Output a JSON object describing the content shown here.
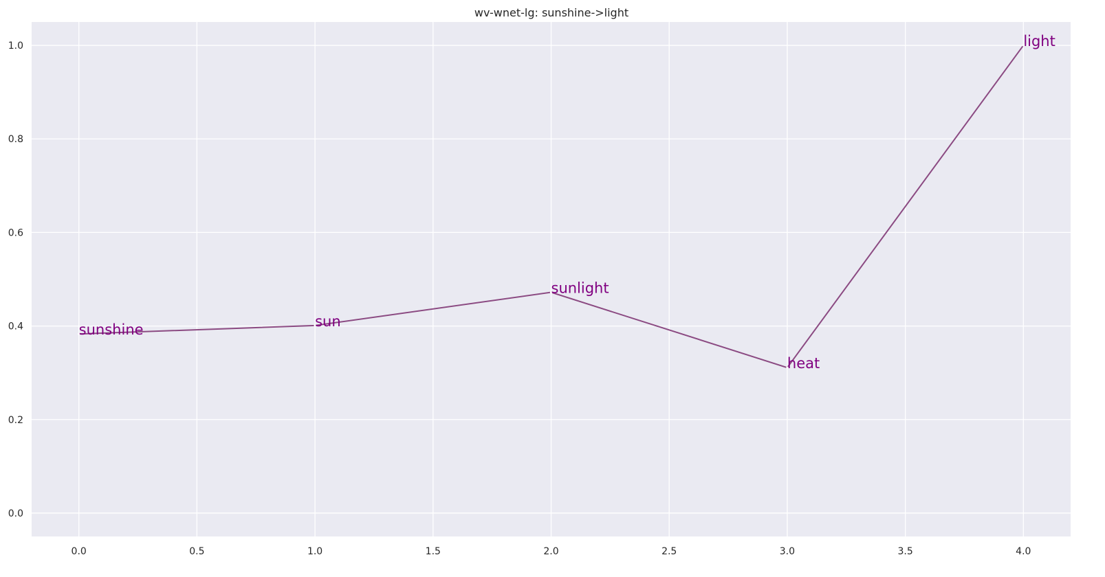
{
  "chart_data": {
    "type": "line",
    "title": "wv-wnet-lg: sunshine->light",
    "xlabel": "",
    "ylabel": "",
    "xlim": [
      -0.2,
      4.2
    ],
    "ylim": [
      -0.05,
      1.05
    ],
    "x_ticks": [
      "0.0",
      "0.5",
      "1.0",
      "1.5",
      "2.0",
      "2.5",
      "3.0",
      "3.5",
      "4.0"
    ],
    "y_ticks": [
      "0.0",
      "0.2",
      "0.4",
      "0.6",
      "0.8",
      "1.0"
    ],
    "grid": true,
    "legend": "none",
    "colors": {
      "background": "#eaeaf2",
      "grid": "#ffffff",
      "line": "#8b4a82",
      "labels": "#800080"
    },
    "series": [
      {
        "x": [
          0,
          1,
          2,
          3,
          4
        ],
        "y": [
          0.383,
          0.401,
          0.472,
          0.311,
          1.0
        ],
        "labels": [
          "sunshine",
          "sun",
          "sunlight",
          "heat",
          "light"
        ]
      }
    ]
  }
}
